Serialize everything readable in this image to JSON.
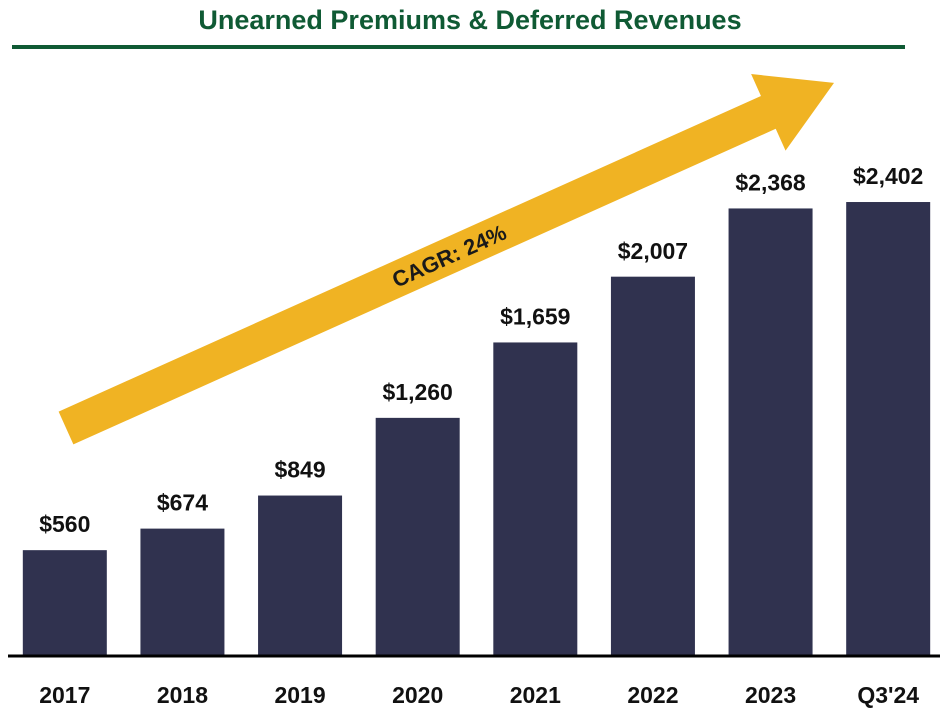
{
  "chart_data": {
    "type": "bar",
    "title": "Unearned Premiums & Deferred Revenues",
    "categories": [
      "2017",
      "2018",
      "2019",
      "2020",
      "2021",
      "2022",
      "2023",
      "Q3'24"
    ],
    "values": [
      560,
      674,
      849,
      1260,
      1659,
      2007,
      2368,
      2402
    ],
    "value_labels": [
      "$560",
      "$674",
      "$849",
      "$1,260",
      "$1,659",
      "$2,007",
      "$2,368",
      "$2,402"
    ],
    "color": "#30324f",
    "ylim": [
      0,
      3000
    ],
    "annotations": [
      "CAGR: 24%"
    ]
  }
}
